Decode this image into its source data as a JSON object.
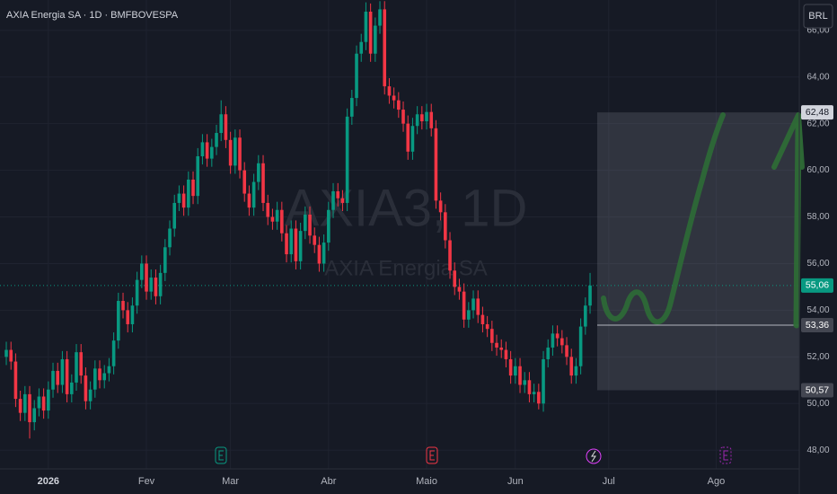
{
  "chart_data": {
    "type": "candlestick",
    "title": "AXIA Energia SA · 1D · BMFBOVESPA",
    "watermark": [
      "AXIA3, 1D",
      "AXIA Energia SA"
    ],
    "currency": "BRL",
    "up_color": "#089981",
    "down_color": "#f23645",
    "x": [
      0,
      1,
      2,
      3,
      4,
      5,
      6,
      7,
      8,
      9,
      10,
      11,
      12,
      13,
      14,
      15,
      16,
      17,
      18,
      19,
      20,
      21,
      22,
      23,
      24,
      25,
      26,
      27,
      28,
      29,
      30,
      31,
      32,
      33,
      34,
      35,
      36,
      37,
      38,
      39,
      40,
      41,
      42,
      43,
      44,
      45,
      46,
      47,
      48,
      49,
      50,
      51,
      52,
      53,
      54,
      55,
      56,
      57,
      58,
      59,
      60,
      61,
      62,
      63,
      64,
      65,
      66,
      67,
      68,
      69,
      70,
      71,
      72,
      73,
      74,
      75,
      76,
      77,
      78,
      79,
      80,
      81,
      82,
      83,
      84,
      85,
      86,
      87,
      88,
      89,
      90,
      91,
      92,
      93,
      94,
      95,
      96,
      97,
      98,
      99,
      100,
      101,
      102,
      103,
      104,
      105,
      106,
      107,
      108,
      109,
      110,
      111,
      112,
      113,
      114,
      115,
      116,
      117,
      118,
      119,
      120,
      121,
      122,
      123,
      124,
      125
    ],
    "open": [
      52.0,
      52.3,
      51.8,
      50.2,
      49.6,
      50.4,
      49.2,
      49.8,
      50.3,
      49.7,
      50.6,
      51.4,
      50.8,
      51.9,
      50.4,
      50.9,
      52.2,
      51.2,
      50.1,
      50.6,
      51.5,
      51.0,
      51.3,
      51.6,
      52.7,
      54.4,
      54.0,
      53.4,
      54.2,
      55.3,
      56.0,
      54.8,
      55.4,
      54.6,
      55.6,
      56.7,
      57.5,
      58.6,
      59.0,
      58.4,
      59.6,
      58.9,
      60.6,
      61.2,
      60.5,
      61.0,
      61.6,
      62.4,
      61.3,
      60.2,
      61.4,
      60.0,
      59.0,
      58.4,
      59.5,
      60.3,
      58.6,
      58.0,
      57.8,
      58.3,
      57.3,
      56.4,
      57.5,
      56.1,
      57.4,
      58.1,
      57.2,
      56.8,
      56.0,
      56.9,
      58.3,
      59.1,
      58.8,
      58.6,
      62.3,
      63.1,
      65.0,
      65.5,
      66.8,
      65.0,
      66.2,
      66.9,
      63.6,
      63.2,
      63.0,
      62.6,
      62.0,
      60.8,
      61.9,
      62.4,
      62.1,
      62.5,
      61.8,
      58.7,
      58.2,
      57.0,
      55.7,
      55.0,
      54.8,
      53.6,
      54.0,
      54.5,
      53.8,
      53.4,
      53.2,
      52.6,
      52.4,
      52.3,
      51.9,
      51.2,
      51.6,
      50.8,
      51.0,
      50.4,
      50.5,
      50.0,
      51.9,
      52.4,
      53.0,
      52.8,
      52.5,
      52.0,
      51.2,
      51.6,
      53.3,
      54.2
    ],
    "high": [
      52.65,
      52.65,
      52.15,
      50.55,
      50.75,
      50.75,
      50.15,
      50.65,
      50.65,
      50.95,
      51.75,
      51.75,
      52.25,
      52.25,
      51.25,
      52.55,
      52.55,
      51.55,
      50.95,
      51.85,
      51.85,
      51.65,
      51.95,
      53.05,
      54.75,
      54.75,
      54.35,
      54.55,
      55.65,
      56.35,
      56.35,
      55.75,
      55.75,
      55.95,
      57.05,
      57.85,
      58.95,
      59.35,
      59.35,
      59.95,
      59.95,
      60.95,
      61.55,
      61.55,
      61.35,
      61.95,
      63.0,
      62.75,
      61.65,
      61.75,
      61.75,
      60.35,
      59.35,
      59.85,
      60.65,
      60.65,
      58.95,
      58.35,
      58.65,
      58.65,
      57.65,
      57.85,
      57.85,
      57.75,
      58.45,
      58.45,
      57.55,
      57.15,
      57.25,
      58.65,
      59.45,
      59.45,
      59.15,
      62.65,
      63.45,
      65.35,
      65.85,
      67.2,
      67.15,
      66.55,
      67.25,
      67.25,
      63.95,
      63.55,
      63.35,
      62.95,
      62.35,
      62.25,
      62.75,
      62.75,
      62.85,
      62.85,
      62.15,
      59.05,
      58.55,
      57.35,
      56.05,
      55.35,
      55.15,
      54.35,
      54.85,
      54.85,
      54.15,
      53.75,
      53.55,
      52.95,
      52.75,
      52.65,
      52.25,
      51.95,
      51.95,
      51.35,
      51.35,
      50.85,
      50.85,
      52.25,
      52.75,
      53.35,
      53.35,
      53.15,
      52.85,
      52.35,
      51.95,
      53.65,
      54.55,
      55.6
    ],
    "low": [
      51.65,
      51.45,
      49.85,
      49.25,
      49.25,
      48.5,
      48.85,
      49.45,
      49.35,
      49.35,
      50.25,
      50.45,
      50.45,
      50.05,
      50.05,
      50.55,
      50.85,
      49.75,
      49.75,
      50.25,
      50.65,
      50.65,
      50.95,
      51.25,
      52.35,
      53.65,
      53.05,
      53.05,
      53.85,
      54.95,
      54.45,
      54.45,
      54.25,
      54.25,
      55.25,
      56.35,
      57.15,
      58.25,
      58.05,
      58.05,
      58.55,
      58.55,
      60.25,
      60.15,
      60.15,
      60.65,
      61.25,
      60.95,
      59.85,
      59.85,
      59.65,
      58.65,
      58.05,
      58.05,
      59.15,
      58.25,
      57.65,
      57.45,
      57.45,
      56.95,
      56.05,
      56.05,
      55.75,
      55.75,
      57.05,
      56.85,
      56.45,
      55.65,
      55.65,
      56.55,
      57.95,
      58.45,
      58.25,
      58.25,
      61.95,
      62.75,
      64.65,
      65.15,
      64.65,
      64.65,
      65.85,
      63.25,
      62.85,
      62.65,
      62.25,
      61.65,
      60.45,
      60.45,
      61.55,
      61.75,
      61.75,
      61.45,
      58.35,
      57.85,
      56.65,
      55.35,
      54.65,
      54.45,
      53.25,
      53.25,
      53.65,
      53.45,
      53.05,
      52.85,
      52.25,
      52.05,
      51.95,
      51.55,
      50.85,
      50.85,
      50.45,
      50.45,
      50.05,
      50.05,
      49.75,
      49.65,
      51.55,
      52.05,
      52.45,
      52.15,
      51.65,
      50.85,
      50.85,
      51.25,
      52.95,
      53.85
    ],
    "close": [
      52.3,
      51.8,
      50.2,
      49.6,
      50.4,
      49.2,
      49.8,
      50.3,
      49.7,
      50.6,
      51.4,
      50.8,
      51.9,
      50.4,
      50.9,
      52.2,
      51.2,
      50.1,
      50.6,
      51.5,
      51.0,
      51.3,
      51.6,
      52.7,
      54.4,
      54.0,
      53.4,
      54.2,
      55.3,
      56.0,
      54.8,
      55.4,
      54.6,
      55.6,
      56.7,
      57.5,
      58.6,
      59.0,
      58.4,
      59.6,
      58.9,
      60.6,
      61.2,
      60.5,
      61.0,
      61.6,
      62.4,
      61.3,
      60.2,
      61.4,
      60.0,
      59.0,
      58.4,
      59.5,
      60.3,
      58.6,
      58.0,
      57.8,
      58.3,
      57.3,
      56.4,
      57.5,
      56.1,
      57.4,
      58.1,
      57.2,
      56.8,
      56.0,
      56.9,
      58.3,
      59.1,
      58.8,
      58.6,
      62.3,
      63.1,
      65.0,
      65.5,
      66.8,
      65.0,
      66.2,
      66.9,
      63.6,
      63.2,
      63.0,
      62.6,
      62.0,
      60.8,
      61.9,
      62.4,
      62.1,
      62.5,
      61.8,
      58.7,
      58.2,
      57.0,
      55.7,
      55.0,
      54.8,
      53.6,
      54.0,
      54.5,
      53.8,
      53.4,
      53.2,
      52.6,
      52.4,
      52.3,
      51.9,
      51.2,
      51.6,
      50.8,
      51.0,
      50.4,
      50.5,
      50.0,
      51.9,
      52.4,
      53.0,
      52.8,
      52.5,
      52.0,
      51.2,
      51.6,
      53.3,
      54.2,
      55.06
    ],
    "xlim": [
      -1.35,
      169.8
    ],
    "xticks": [
      {
        "value": 9,
        "label": "2026"
      },
      {
        "value": 30,
        "label": "Fev"
      },
      {
        "value": 48,
        "label": "Mar"
      },
      {
        "value": 69,
        "label": "Abr"
      },
      {
        "value": 90,
        "label": "Maio"
      },
      {
        "value": 109,
        "label": "Jun"
      },
      {
        "value": 129,
        "label": "Jul"
      },
      {
        "value": 152,
        "label": "Ago"
      }
    ],
    "ylim": [
      47.2,
      67.3
    ],
    "yticks": [
      {
        "value": 48,
        "label": "48,00"
      },
      {
        "value": 50,
        "label": "50,00"
      },
      {
        "value": 52,
        "label": "52,00"
      },
      {
        "value": 54,
        "label": "54,00"
      },
      {
        "value": 56,
        "label": "56,00"
      },
      {
        "value": 58,
        "label": "58,00"
      },
      {
        "value": 60,
        "label": "60,00"
      },
      {
        "value": 62,
        "label": "62,00"
      },
      {
        "value": 64,
        "label": "64,00"
      },
      {
        "value": 66,
        "label": "66,00"
      }
    ],
    "grid": true,
    "last_price": {
      "value": 55.06,
      "label": "55,06"
    },
    "range_box": {
      "high": {
        "value": 62.48,
        "label": "62,48"
      },
      "low": {
        "value": 50.57,
        "label": "50,57"
      }
    },
    "level_line": {
      "value": 53.36,
      "label": "53,36"
    }
  }
}
